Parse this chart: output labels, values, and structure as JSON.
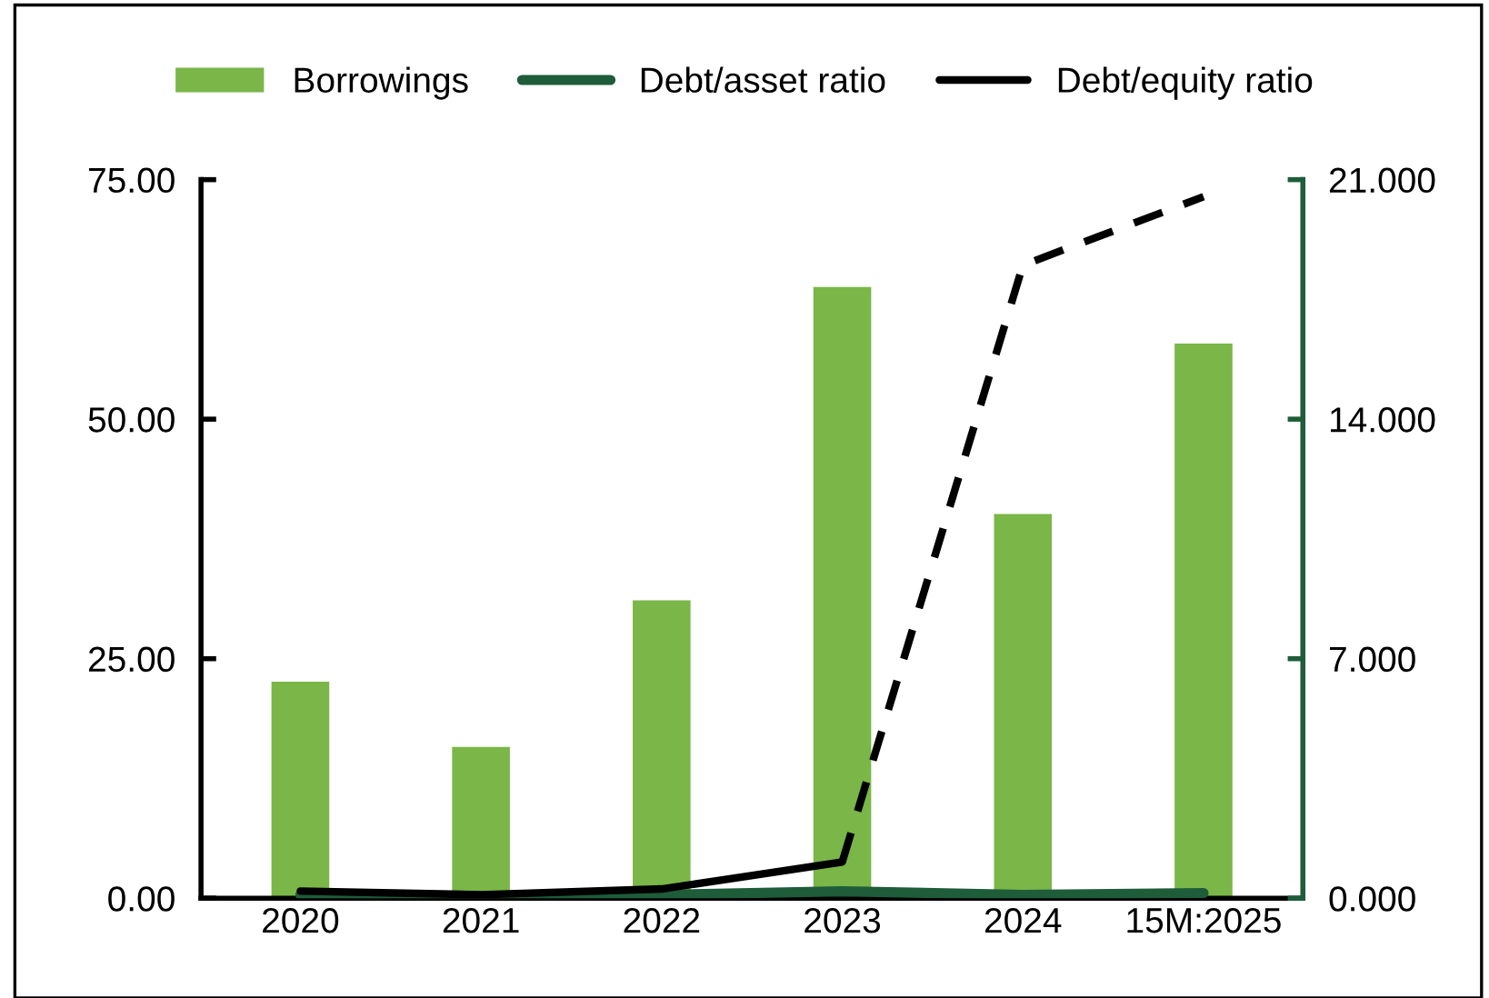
{
  "chart_data": {
    "type": "bar",
    "categories": [
      "2020",
      "2021",
      "2022",
      "2023",
      "2024",
      "15M:2025"
    ],
    "series": [
      {
        "name": "Borrowings",
        "color": "#7ab648",
        "values": [
          22.6,
          15.8,
          31.1,
          63.8,
          40.1,
          57.9
        ]
      },
      {
        "name": "Debt/asset ratio",
        "type": "line",
        "axis": "y2",
        "color": "#1e5c3a",
        "line_style": "solid",
        "values": [
          0.1,
          0.05,
          0.1,
          0.2,
          0.1,
          0.15
        ]
      },
      {
        "name": "Debt/equity ratio",
        "type": "line",
        "axis": "y2",
        "color": "#000000",
        "line_style": "solid",
        "values": [
          0.21,
          0.1,
          0.27,
          1.06,
          null,
          null
        ]
      },
      {
        "type": "line",
        "axis": "y2",
        "color": "#000000",
        "line_style": "dashed",
        "values": [
          null,
          null,
          null,
          1.06,
          18.5,
          20.5
        ]
      }
    ],
    "ylim": [
      0,
      75
    ],
    "yticks": [
      {
        "value": 0,
        "label": "0.00"
      },
      {
        "value": 25,
        "label": "25.00"
      },
      {
        "value": 50,
        "label": "50.00"
      },
      {
        "value": 75,
        "label": "75.00"
      }
    ],
    "y2lim": [
      0,
      21
    ],
    "y2ticks": [
      {
        "value": 0,
        "label": "0.000"
      },
      {
        "value": 7,
        "label": "7.000"
      },
      {
        "value": 14,
        "label": "14.000"
      },
      {
        "value": 21,
        "label": "21.000"
      }
    ],
    "grid": false,
    "legend": "top"
  }
}
